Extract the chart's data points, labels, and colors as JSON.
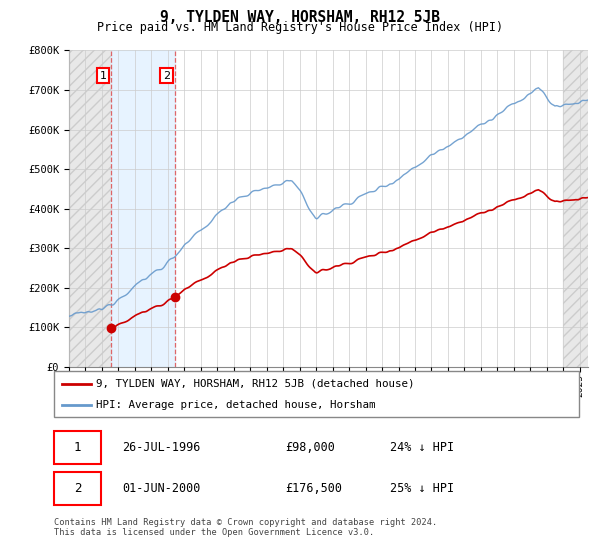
{
  "title": "9, TYLDEN WAY, HORSHAM, RH12 5JB",
  "subtitle": "Price paid vs. HM Land Registry's House Price Index (HPI)",
  "footer": "Contains HM Land Registry data © Crown copyright and database right 2024.\nThis data is licensed under the Open Government Licence v3.0.",
  "legend_line1": "9, TYLDEN WAY, HORSHAM, RH12 5JB (detached house)",
  "legend_line2": "HPI: Average price, detached house, Horsham",
  "sale1_date": "26-JUL-1996",
  "sale1_price": "£98,000",
  "sale1_hpi": "24% ↓ HPI",
  "sale1_year": 1996.57,
  "sale1_value": 98000,
  "sale2_date": "01-JUN-2000",
  "sale2_price": "£176,500",
  "sale2_hpi": "25% ↓ HPI",
  "sale2_year": 2000.42,
  "sale2_value": 176500,
  "xmin": 1994,
  "xmax": 2025.5,
  "ymin": 0,
  "ymax": 800000,
  "hpi_color": "#6699cc",
  "price_color": "#cc0000",
  "grid_color": "#cccccc",
  "hatch_left_color": "#bbbbbb",
  "between_color": "#ddeeff"
}
